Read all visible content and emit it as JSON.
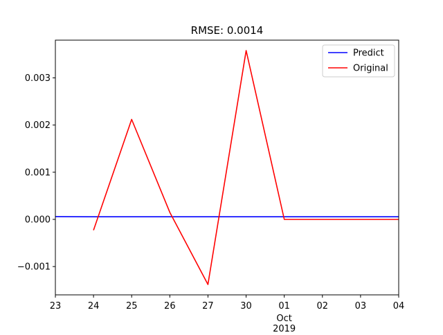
{
  "chart_data": {
    "type": "line",
    "title": "RMSE: 0.0014",
    "xlabel": "",
    "ylabel": "",
    "x_tick_labels": [
      "23",
      "24",
      "25",
      "26",
      "27",
      "30",
      "01",
      "02",
      "03",
      "04"
    ],
    "x_tick_sublabels": {
      "01": [
        "Oct",
        "2019"
      ]
    },
    "y_ticks": [
      -0.001,
      0.0,
      0.001,
      0.002,
      0.003
    ],
    "y_tick_labels": [
      "−0.001",
      "0.000",
      "0.001",
      "0.002",
      "0.003"
    ],
    "ylim": [
      -0.0016,
      0.0038
    ],
    "legend_position": "upper right",
    "grid": false,
    "series": [
      {
        "name": "Predict",
        "color": "#0000ff",
        "x": [
          "23",
          "24",
          "25",
          "26",
          "27",
          "30",
          "01",
          "02",
          "03",
          "04"
        ],
        "values": [
          6e-05,
          5.5e-05,
          5.5e-05,
          5.5e-05,
          5.5e-05,
          5.5e-05,
          5.5e-05,
          5.5e-05,
          5.5e-05,
          5.5e-05
        ]
      },
      {
        "name": "Original",
        "color": "#ff0000",
        "x": [
          "24",
          "25",
          "26",
          "27",
          "30",
          "01",
          "02",
          "03",
          "04"
        ],
        "values": [
          -0.00023,
          0.00212,
          0.00015,
          -0.00138,
          0.00358,
          0.0,
          0.0,
          0.0,
          0.0
        ]
      }
    ]
  }
}
